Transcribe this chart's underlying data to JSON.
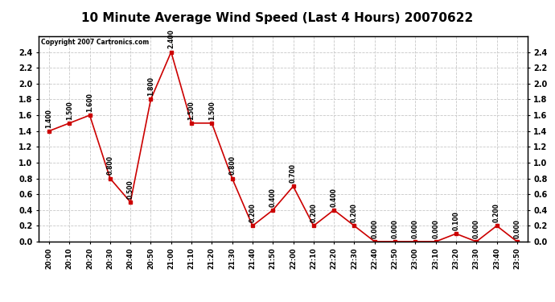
{
  "title": "10 Minute Average Wind Speed (Last 4 Hours) 20070622",
  "copyright": "Copyright 2007 Cartronics.com",
  "x_labels": [
    "20:00",
    "20:10",
    "20:20",
    "20:30",
    "20:40",
    "20:50",
    "21:00",
    "21:10",
    "21:20",
    "21:30",
    "21:40",
    "21:50",
    "22:00",
    "22:10",
    "22:20",
    "22:30",
    "22:40",
    "22:50",
    "23:00",
    "23:10",
    "23:20",
    "23:30",
    "23:40",
    "23:50"
  ],
  "y_values": [
    1.4,
    1.5,
    1.6,
    0.8,
    0.5,
    1.8,
    2.4,
    1.5,
    1.5,
    0.8,
    0.2,
    0.4,
    0.7,
    0.2,
    0.4,
    0.2,
    0.0,
    0.0,
    0.0,
    0.0,
    0.1,
    0.0,
    0.2,
    0.0
  ],
  "line_color": "#cc0000",
  "marker_color": "#cc0000",
  "bg_color": "#ffffff",
  "plot_bg_color": "#ffffff",
  "grid_color": "#c8c8c8",
  "title_fontsize": 11,
  "ylim": [
    0.0,
    2.6
  ],
  "yticks": [
    0.0,
    0.2,
    0.4,
    0.6,
    0.8,
    1.0,
    1.2,
    1.4,
    1.6,
    1.8,
    2.0,
    2.2,
    2.4
  ]
}
